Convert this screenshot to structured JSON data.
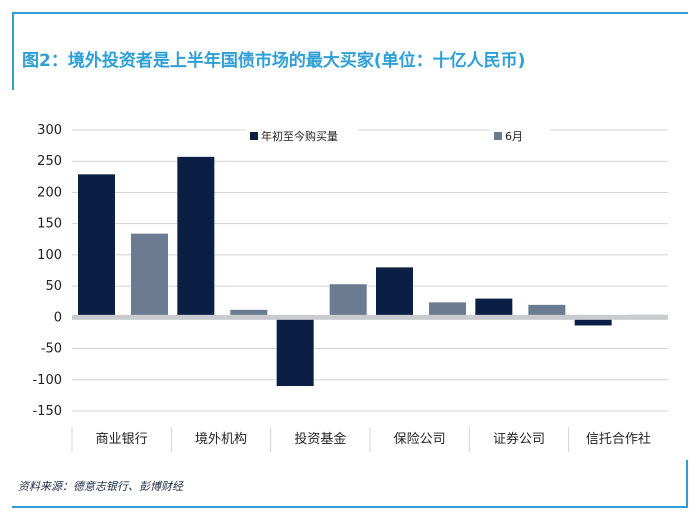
{
  "title": "图2：境外投资者是上半年国债市场的最大买家(单位：十亿人民币)",
  "source": "资料来源：德意志银行、彭博财经",
  "chart_data": {
    "type": "bar",
    "categories": [
      "商业银行",
      "境外机构",
      "投资基金",
      "保险公司",
      "证券公司",
      "信托合作社"
    ],
    "series": [
      {
        "name": "年初至今购买量",
        "color": "#0b1f44",
        "values": [
          229,
          257,
          -110,
          80,
          30,
          -13
        ]
      },
      {
        "name": "6月",
        "color": "#6b7b92",
        "values": [
          134,
          12,
          53,
          24,
          20,
          4
        ]
      }
    ],
    "ylim": [
      -150,
      300
    ],
    "yticks": [
      300,
      250,
      200,
      150,
      100,
      50,
      0,
      -50,
      -100,
      -150
    ],
    "grid": true,
    "legend": "top",
    "xlabel": "",
    "ylabel": ""
  }
}
